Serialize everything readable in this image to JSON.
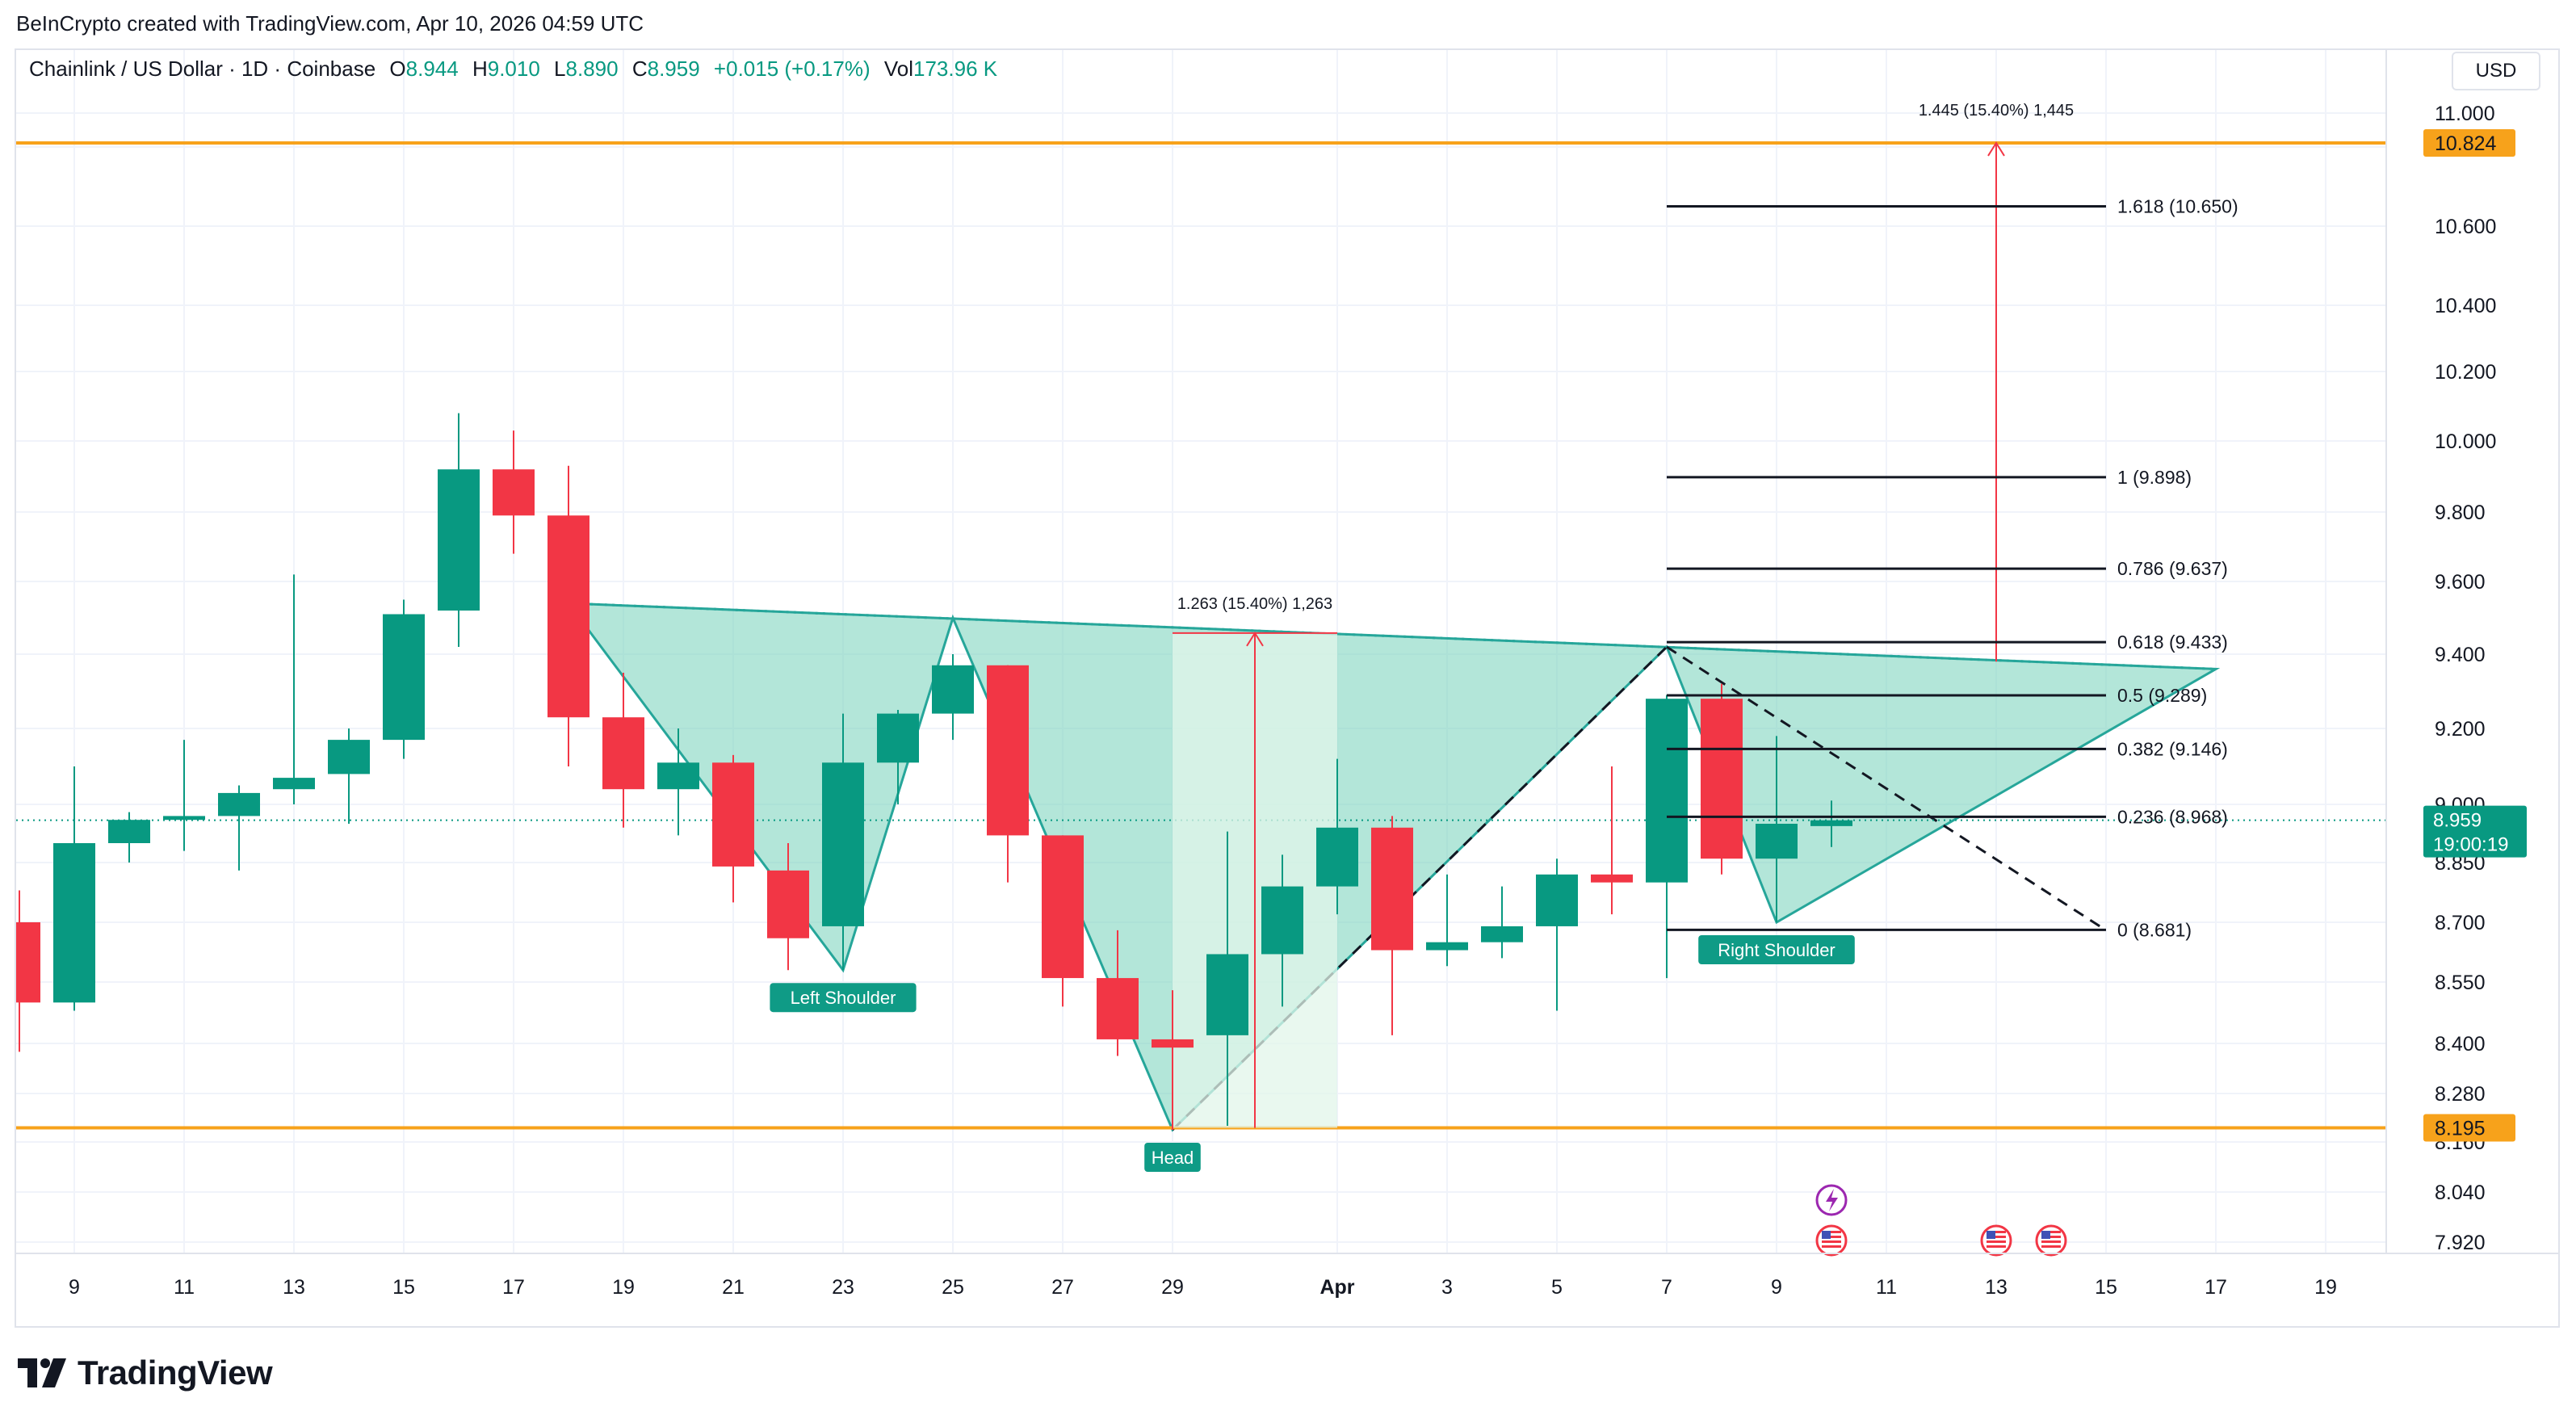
{
  "header": {
    "credit": "BeInCrypto created with TradingView.com, Apr 10, 2026 04:59 UTC"
  },
  "legend": {
    "symbol": "Chainlink / US Dollar · 1D · Coinbase",
    "o_label": "O",
    "o_value": "8.944",
    "h_label": "H",
    "h_value": "9.010",
    "l_label": "L",
    "l_value": "8.890",
    "c_label": "C",
    "c_value": "8.959",
    "change": "+0.015 (+0.17%)",
    "vol_label": "Vol",
    "vol_value": "173.96 K"
  },
  "currency": "USD",
  "logo_text": "TradingView",
  "colors": {
    "up": "#089981",
    "down": "#f23645",
    "pattern_fill": "#80d5c0",
    "pattern_stroke": "#26a69a",
    "level": "#f7a21b",
    "fib": "#131722",
    "measure": "#f23645",
    "grid": "#f0f3fa"
  },
  "chart_data": {
    "type": "candlestick",
    "title": "Chainlink / US Dollar · 1D · Coinbase",
    "y_axis": {
      "ticks": [
        11.0,
        10.8,
        10.6,
        10.4,
        10.2,
        10.0,
        9.8,
        9.6,
        9.4,
        9.2,
        9.0,
        8.85,
        8.7,
        8.55,
        8.4,
        8.28,
        8.16,
        8.04,
        7.92
      ],
      "tick_labels": [
        "11.000",
        "10.800",
        "10.600",
        "10.400",
        "10.200",
        "10.000",
        "9.800",
        "9.600",
        "9.400",
        "9.200",
        "9.000",
        "8.850",
        "8.700",
        "8.550",
        "8.400",
        "8.280",
        "8.160",
        "8.040",
        "7.920"
      ]
    },
    "x_axis": {
      "tick_labels": [
        "9",
        "11",
        "13",
        "15",
        "17",
        "19",
        "21",
        "23",
        "25",
        "27",
        "29",
        "Apr",
        "3",
        "5",
        "7",
        "9",
        "11",
        "13",
        "15",
        "17",
        "19"
      ],
      "tick_dates": [
        "2026-03-09",
        "2026-03-11",
        "2026-03-13",
        "2026-03-15",
        "2026-03-17",
        "2026-03-19",
        "2026-03-21",
        "2026-03-23",
        "2026-03-25",
        "2026-03-27",
        "2026-03-29",
        "2026-04-01",
        "2026-04-03",
        "2026-04-05",
        "2026-04-07",
        "2026-04-09",
        "2026-04-11",
        "2026-04-13",
        "2026-04-15",
        "2026-04-17",
        "2026-04-19"
      ]
    },
    "candles": [
      {
        "date": "2026-03-08",
        "o": 8.7,
        "h": 8.78,
        "l": 8.38,
        "c": 8.5
      },
      {
        "date": "2026-03-09",
        "o": 8.5,
        "h": 9.1,
        "l": 8.48,
        "c": 8.9
      },
      {
        "date": "2026-03-10",
        "o": 8.9,
        "h": 8.98,
        "l": 8.85,
        "c": 8.96
      },
      {
        "date": "2026-03-11",
        "o": 8.96,
        "h": 9.17,
        "l": 8.88,
        "c": 8.97
      },
      {
        "date": "2026-03-12",
        "o": 8.97,
        "h": 9.05,
        "l": 8.83,
        "c": 9.03
      },
      {
        "date": "2026-03-13",
        "o": 9.04,
        "h": 9.62,
        "l": 9.0,
        "c": 9.07
      },
      {
        "date": "2026-03-14",
        "o": 9.08,
        "h": 9.2,
        "l": 8.95,
        "c": 9.17
      },
      {
        "date": "2026-03-15",
        "o": 9.17,
        "h": 9.55,
        "l": 9.12,
        "c": 9.51
      },
      {
        "date": "2026-03-16",
        "o": 9.52,
        "h": 10.08,
        "l": 9.42,
        "c": 9.92
      },
      {
        "date": "2026-03-17",
        "o": 9.92,
        "h": 10.03,
        "l": 9.68,
        "c": 9.79
      },
      {
        "date": "2026-03-18",
        "o": 9.79,
        "h": 9.93,
        "l": 9.1,
        "c": 9.23
      },
      {
        "date": "2026-03-19",
        "o": 9.23,
        "h": 9.35,
        "l": 8.94,
        "c": 9.04
      },
      {
        "date": "2026-03-20",
        "o": 9.04,
        "h": 9.2,
        "l": 8.92,
        "c": 9.11
      },
      {
        "date": "2026-03-21",
        "o": 9.11,
        "h": 9.13,
        "l": 8.75,
        "c": 8.84
      },
      {
        "date": "2026-03-22",
        "o": 8.83,
        "h": 8.9,
        "l": 8.58,
        "c": 8.66
      },
      {
        "date": "2026-03-23",
        "o": 8.69,
        "h": 9.24,
        "l": 8.58,
        "c": 9.11
      },
      {
        "date": "2026-03-24",
        "o": 9.11,
        "h": 9.25,
        "l": 9.0,
        "c": 9.24
      },
      {
        "date": "2026-03-25",
        "o": 9.24,
        "h": 9.4,
        "l": 9.17,
        "c": 9.37
      },
      {
        "date": "2026-03-26",
        "o": 9.37,
        "h": 9.37,
        "l": 8.8,
        "c": 8.92
      },
      {
        "date": "2026-03-27",
        "o": 8.92,
        "h": 8.92,
        "l": 8.49,
        "c": 8.56
      },
      {
        "date": "2026-03-28",
        "o": 8.56,
        "h": 8.68,
        "l": 8.37,
        "c": 8.41
      },
      {
        "date": "2026-03-29",
        "o": 8.41,
        "h": 8.53,
        "l": 8.19,
        "c": 8.39
      },
      {
        "date": "2026-03-30",
        "o": 8.42,
        "h": 8.93,
        "l": 8.2,
        "c": 8.62
      },
      {
        "date": "2026-03-31",
        "o": 8.62,
        "h": 8.87,
        "l": 8.49,
        "c": 8.79
      },
      {
        "date": "2026-04-01",
        "o": 8.79,
        "h": 9.12,
        "l": 8.72,
        "c": 8.94
      },
      {
        "date": "2026-04-02",
        "o": 8.94,
        "h": 8.97,
        "l": 8.42,
        "c": 8.63
      },
      {
        "date": "2026-04-03",
        "o": 8.63,
        "h": 8.82,
        "l": 8.59,
        "c": 8.65
      },
      {
        "date": "2026-04-04",
        "o": 8.65,
        "h": 8.79,
        "l": 8.61,
        "c": 8.69
      },
      {
        "date": "2026-04-05",
        "o": 8.69,
        "h": 8.86,
        "l": 8.48,
        "c": 8.82
      },
      {
        "date": "2026-04-06",
        "o": 8.82,
        "h": 9.1,
        "l": 8.72,
        "c": 8.8
      },
      {
        "date": "2026-04-07",
        "o": 8.8,
        "h": 9.29,
        "l": 8.56,
        "c": 9.28
      },
      {
        "date": "2026-04-08",
        "o": 9.28,
        "h": 9.32,
        "l": 8.82,
        "c": 8.86
      },
      {
        "date": "2026-04-09",
        "o": 8.86,
        "h": 9.18,
        "l": 8.7,
        "c": 8.95
      },
      {
        "date": "2026-04-10",
        "o": 8.944,
        "h": 9.01,
        "l": 8.89,
        "c": 8.959
      }
    ],
    "horizontal_levels": [
      {
        "value": 10.824,
        "label": "10.824"
      },
      {
        "value": 8.195,
        "label": "8.195"
      }
    ],
    "last_price": {
      "value": 8.959,
      "label": "8.959",
      "countdown": "19:00:19"
    },
    "fib_levels": [
      {
        "ratio_label": "1.618 (10.650)",
        "value": 10.65
      },
      {
        "ratio_label": "1 (9.898)",
        "value": 9.898
      },
      {
        "ratio_label": "0.786 (9.637)",
        "value": 9.637
      },
      {
        "ratio_label": "0.618 (9.433)",
        "value": 9.433
      },
      {
        "ratio_label": "0.5 (9.289)",
        "value": 9.289
      },
      {
        "ratio_label": "0.382 (9.146)",
        "value": 9.146
      },
      {
        "ratio_label": "0.236 (8.968)",
        "value": 8.968
      },
      {
        "ratio_label": "0 (8.681)",
        "value": 8.681
      }
    ],
    "fib_range": {
      "start": "2026-04-07",
      "end": "2026-04-15"
    },
    "pattern": {
      "name": "inverse head and shoulders",
      "left_shoulder": {
        "label": "Left Shoulder",
        "date": "2026-03-23",
        "value": 8.58
      },
      "head": {
        "label": "Head",
        "date": "2026-03-29",
        "value": 8.19
      },
      "right_shoulder": {
        "label": "Right Shoulder",
        "date": "2026-04-09",
        "value": 8.7
      },
      "polygon": [
        {
          "date": "2026-03-18",
          "value": 9.54
        },
        {
          "date": "2026-03-23",
          "value": 8.58
        },
        {
          "date": "2026-03-25",
          "value": 9.5
        },
        {
          "date": "2026-03-29",
          "value": 8.19
        },
        {
          "date": "2026-04-07",
          "value": 9.42
        },
        {
          "date": "2026-04-09",
          "value": 8.7
        },
        {
          "date": "2026-04-17",
          "value": 9.36
        }
      ],
      "neckline": [
        {
          "date": "2026-03-18",
          "value": 9.54
        },
        {
          "date": "2026-04-17",
          "value": 9.36
        }
      ],
      "rising_trend": [
        {
          "date": "2026-03-29",
          "value": 8.19
        },
        {
          "date": "2026-04-07",
          "value": 9.42
        }
      ],
      "falling_trend": [
        {
          "date": "2026-04-07",
          "value": 9.42
        },
        {
          "date": "2026-04-15",
          "value": 8.68
        }
      ]
    },
    "measurements": [
      {
        "label": "1.263 (15.40%) 1,263",
        "start_date": "2026-03-29",
        "end_date": "2026-03-31",
        "from": 8.195,
        "to": 9.458
      },
      {
        "label": "1.445 (15.40%) 1,445",
        "date": "2026-04-13",
        "from": 9.38,
        "to": 10.824
      }
    ],
    "event_markers": [
      {
        "date": "2026-04-10",
        "kind": "lightning-icon"
      },
      {
        "date": "2026-04-10",
        "kind": "us-flag-icon"
      },
      {
        "date": "2026-04-13",
        "kind": "us-flag-icon"
      },
      {
        "date": "2026-04-14",
        "kind": "us-flag-icon"
      }
    ]
  }
}
